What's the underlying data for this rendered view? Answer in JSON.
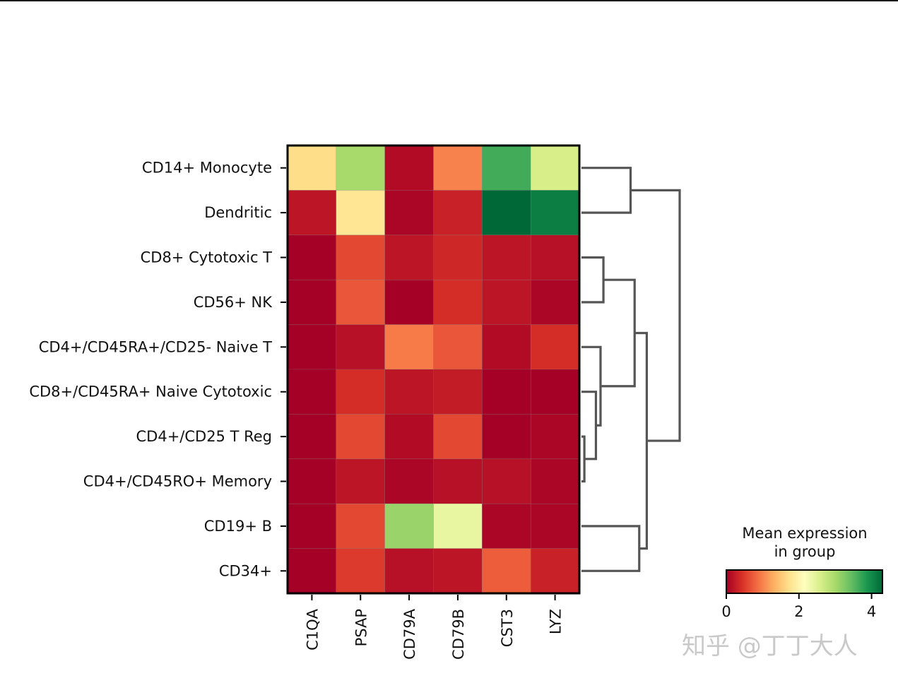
{
  "chart_data": {
    "type": "heatmap",
    "title": "",
    "xlabel": "",
    "ylabel": "",
    "genes": [
      "C1QA",
      "PSAP",
      "CD79A",
      "CD79B",
      "CST3",
      "LYZ"
    ],
    "cell_types": [
      "CD14+ Monocyte",
      "Dendritic",
      "CD8+ Cytotoxic T",
      "CD56+ NK",
      "CD4+/CD45RA+/CD25- Naive T",
      "CD8+/CD45RA+ Naive Cytotoxic",
      "CD4+/CD25 T Reg",
      "CD4+/CD45RO+ Memory",
      "CD19+ B",
      "CD34+"
    ],
    "values": [
      [
        1.7,
        3.0,
        0.1,
        1.0,
        3.65,
        2.6
      ],
      [
        0.2,
        1.8,
        0.05,
        0.3,
        4.3,
        4.1
      ],
      [
        0.0,
        0.6,
        0.2,
        0.35,
        0.2,
        0.15
      ],
      [
        0.0,
        0.7,
        0.0,
        0.4,
        0.2,
        0.05
      ],
      [
        0.0,
        0.15,
        0.95,
        0.7,
        0.1,
        0.4
      ],
      [
        0.0,
        0.4,
        0.2,
        0.25,
        0.0,
        0.0
      ],
      [
        0.0,
        0.6,
        0.1,
        0.6,
        0.0,
        0.05
      ],
      [
        0.0,
        0.2,
        0.05,
        0.15,
        0.15,
        0.05
      ],
      [
        0.0,
        0.6,
        3.1,
        2.4,
        0.05,
        0.05
      ],
      [
        0.0,
        0.5,
        0.15,
        0.2,
        0.75,
        0.3
      ]
    ],
    "colormap": "RdYlGn",
    "vmin": 0,
    "vmax": 4.3,
    "colorbar": {
      "title_line1": "Mean expression",
      "title_line2": "in group",
      "ticks": [
        0,
        2,
        4
      ]
    },
    "dendrogram": {
      "leaf_order": [
        0,
        1,
        2,
        3,
        4,
        5,
        6,
        7,
        8,
        9
      ],
      "merges": [
        {
          "left": "L6",
          "right": "L7",
          "height": 0.05
        },
        {
          "left": "L5",
          "right": "M0",
          "height": 0.25
        },
        {
          "left": "L4",
          "right": "M1",
          "height": 0.33
        },
        {
          "left": "L2",
          "right": "L3",
          "height": 0.38
        },
        {
          "left": "M3",
          "right": "M2",
          "height": 0.92
        },
        {
          "left": "L8",
          "right": "L9",
          "height": 1.0
        },
        {
          "left": "M4",
          "right": "M5",
          "height": 1.13
        },
        {
          "left": "L0",
          "right": "L1",
          "height": 0.85
        },
        {
          "left": "M7",
          "right": "M6",
          "height": 1.7
        }
      ]
    }
  },
  "watermark": "知乎 @丁丁大人"
}
